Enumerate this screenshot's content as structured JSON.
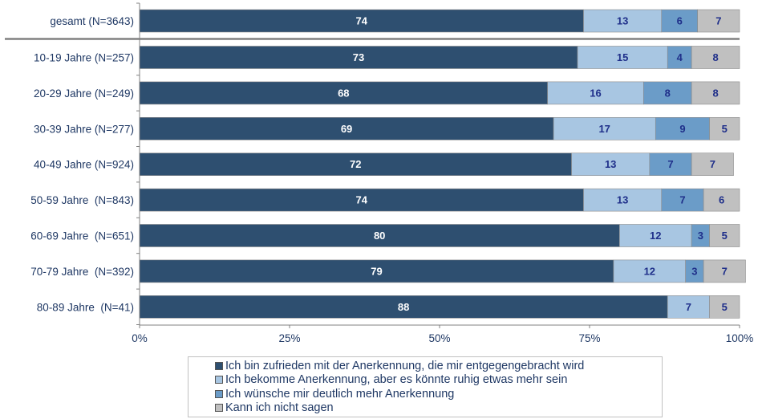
{
  "chart_data": {
    "type": "bar",
    "orientation": "horizontal",
    "stacked": true,
    "categories": [
      "gesamt (N=3643)",
      "10-19 Jahre (N=257)",
      "20-29 Jahre (N=249)",
      "30-39 Jahre (N=277)",
      "40-49 Jahre (N=924)",
      "50-59 Jahre  (N=843)",
      "60-69 Jahre  (N=651)",
      "70-79 Jahre  (N=392)",
      "80-89 Jahre  (N=41)"
    ],
    "series": [
      {
        "name": "Ich bin zufrieden mit der Anerkennung, die mir entgegengebracht wird",
        "color": "#2e4f70",
        "label_color": "#ffffff",
        "values": [
          74,
          73,
          68,
          69,
          72,
          74,
          80,
          79,
          88
        ]
      },
      {
        "name": "Ich bekomme Anerkennung, aber es könnte ruhig etwas mehr sein",
        "color": "#a8c6e2",
        "label_color": "#1f2f8a",
        "values": [
          13,
          15,
          16,
          17,
          13,
          13,
          12,
          12,
          7
        ]
      },
      {
        "name": "Ich wünsche mir deutlich mehr Anerkennung",
        "color": "#6b9cc8",
        "label_color": "#1f2f8a",
        "values": [
          6,
          4,
          8,
          9,
          7,
          7,
          3,
          3,
          0
        ]
      },
      {
        "name": "Kann ich nicht sagen",
        "color": "#c0c0c0",
        "label_color": "#1f2f8a",
        "values": [
          7,
          8,
          8,
          5,
          7,
          6,
          5,
          7,
          5
        ]
      }
    ],
    "x_ticks": [
      "0%",
      "25%",
      "50%",
      "75%",
      "100%"
    ],
    "xlim": [
      0,
      100
    ],
    "legend_position": "bottom",
    "grid": false
  }
}
